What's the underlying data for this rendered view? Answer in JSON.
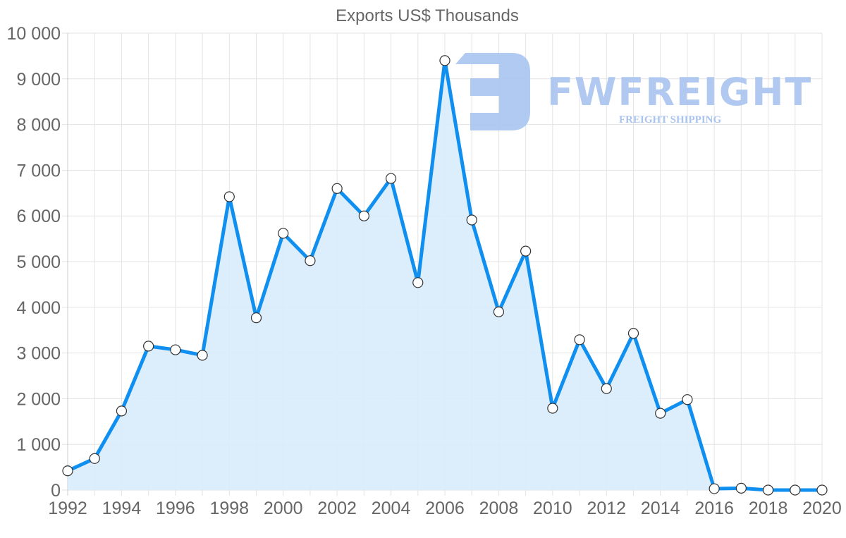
{
  "chart_data": {
    "type": "area",
    "title": "Exports US$ Thousands",
    "xlabel": "",
    "ylabel": "",
    "x": [
      1992,
      1993,
      1994,
      1995,
      1996,
      1997,
      1998,
      1999,
      2000,
      2001,
      2002,
      2003,
      2004,
      2005,
      2006,
      2007,
      2008,
      2009,
      2010,
      2011,
      2012,
      2013,
      2014,
      2015,
      2016,
      2017,
      2018,
      2019,
      2020
    ],
    "series": [
      {
        "name": "Exports US$ Thousands",
        "values": [
          420,
          690,
          1730,
          3150,
          3070,
          2950,
          6420,
          3770,
          5620,
          5020,
          6600,
          6000,
          6820,
          4540,
          9400,
          5910,
          3900,
          5230,
          1790,
          3290,
          2220,
          3430,
          1680,
          1980,
          30,
          40,
          0,
          0,
          0
        ]
      }
    ],
    "ylim": [
      0,
      10000
    ],
    "xlim": [
      1992,
      2020
    ],
    "y_ticks": [
      "0",
      "1 000",
      "2 000",
      "3 000",
      "4 000",
      "5 000",
      "6 000",
      "7 000",
      "8 000",
      "9 000",
      "10 000"
    ],
    "x_ticks": [
      "1992",
      "1994",
      "1996",
      "1998",
      "2000",
      "2002",
      "2004",
      "2006",
      "2008",
      "2010",
      "2012",
      "2014",
      "2016",
      "2018",
      "2020"
    ],
    "grid": true,
    "legend": "none",
    "colors": {
      "line": "#0f8ff0",
      "fill": "#d8ebfb",
      "point_fill": "#ffffff",
      "point_stroke": "#333333",
      "grid": "#e3e3e3",
      "text": "#666666"
    }
  },
  "watermark": {
    "brand": "FWFREIGHT",
    "tagline": "FREIGHT SHIPPING",
    "color": "#a9c4f0"
  }
}
